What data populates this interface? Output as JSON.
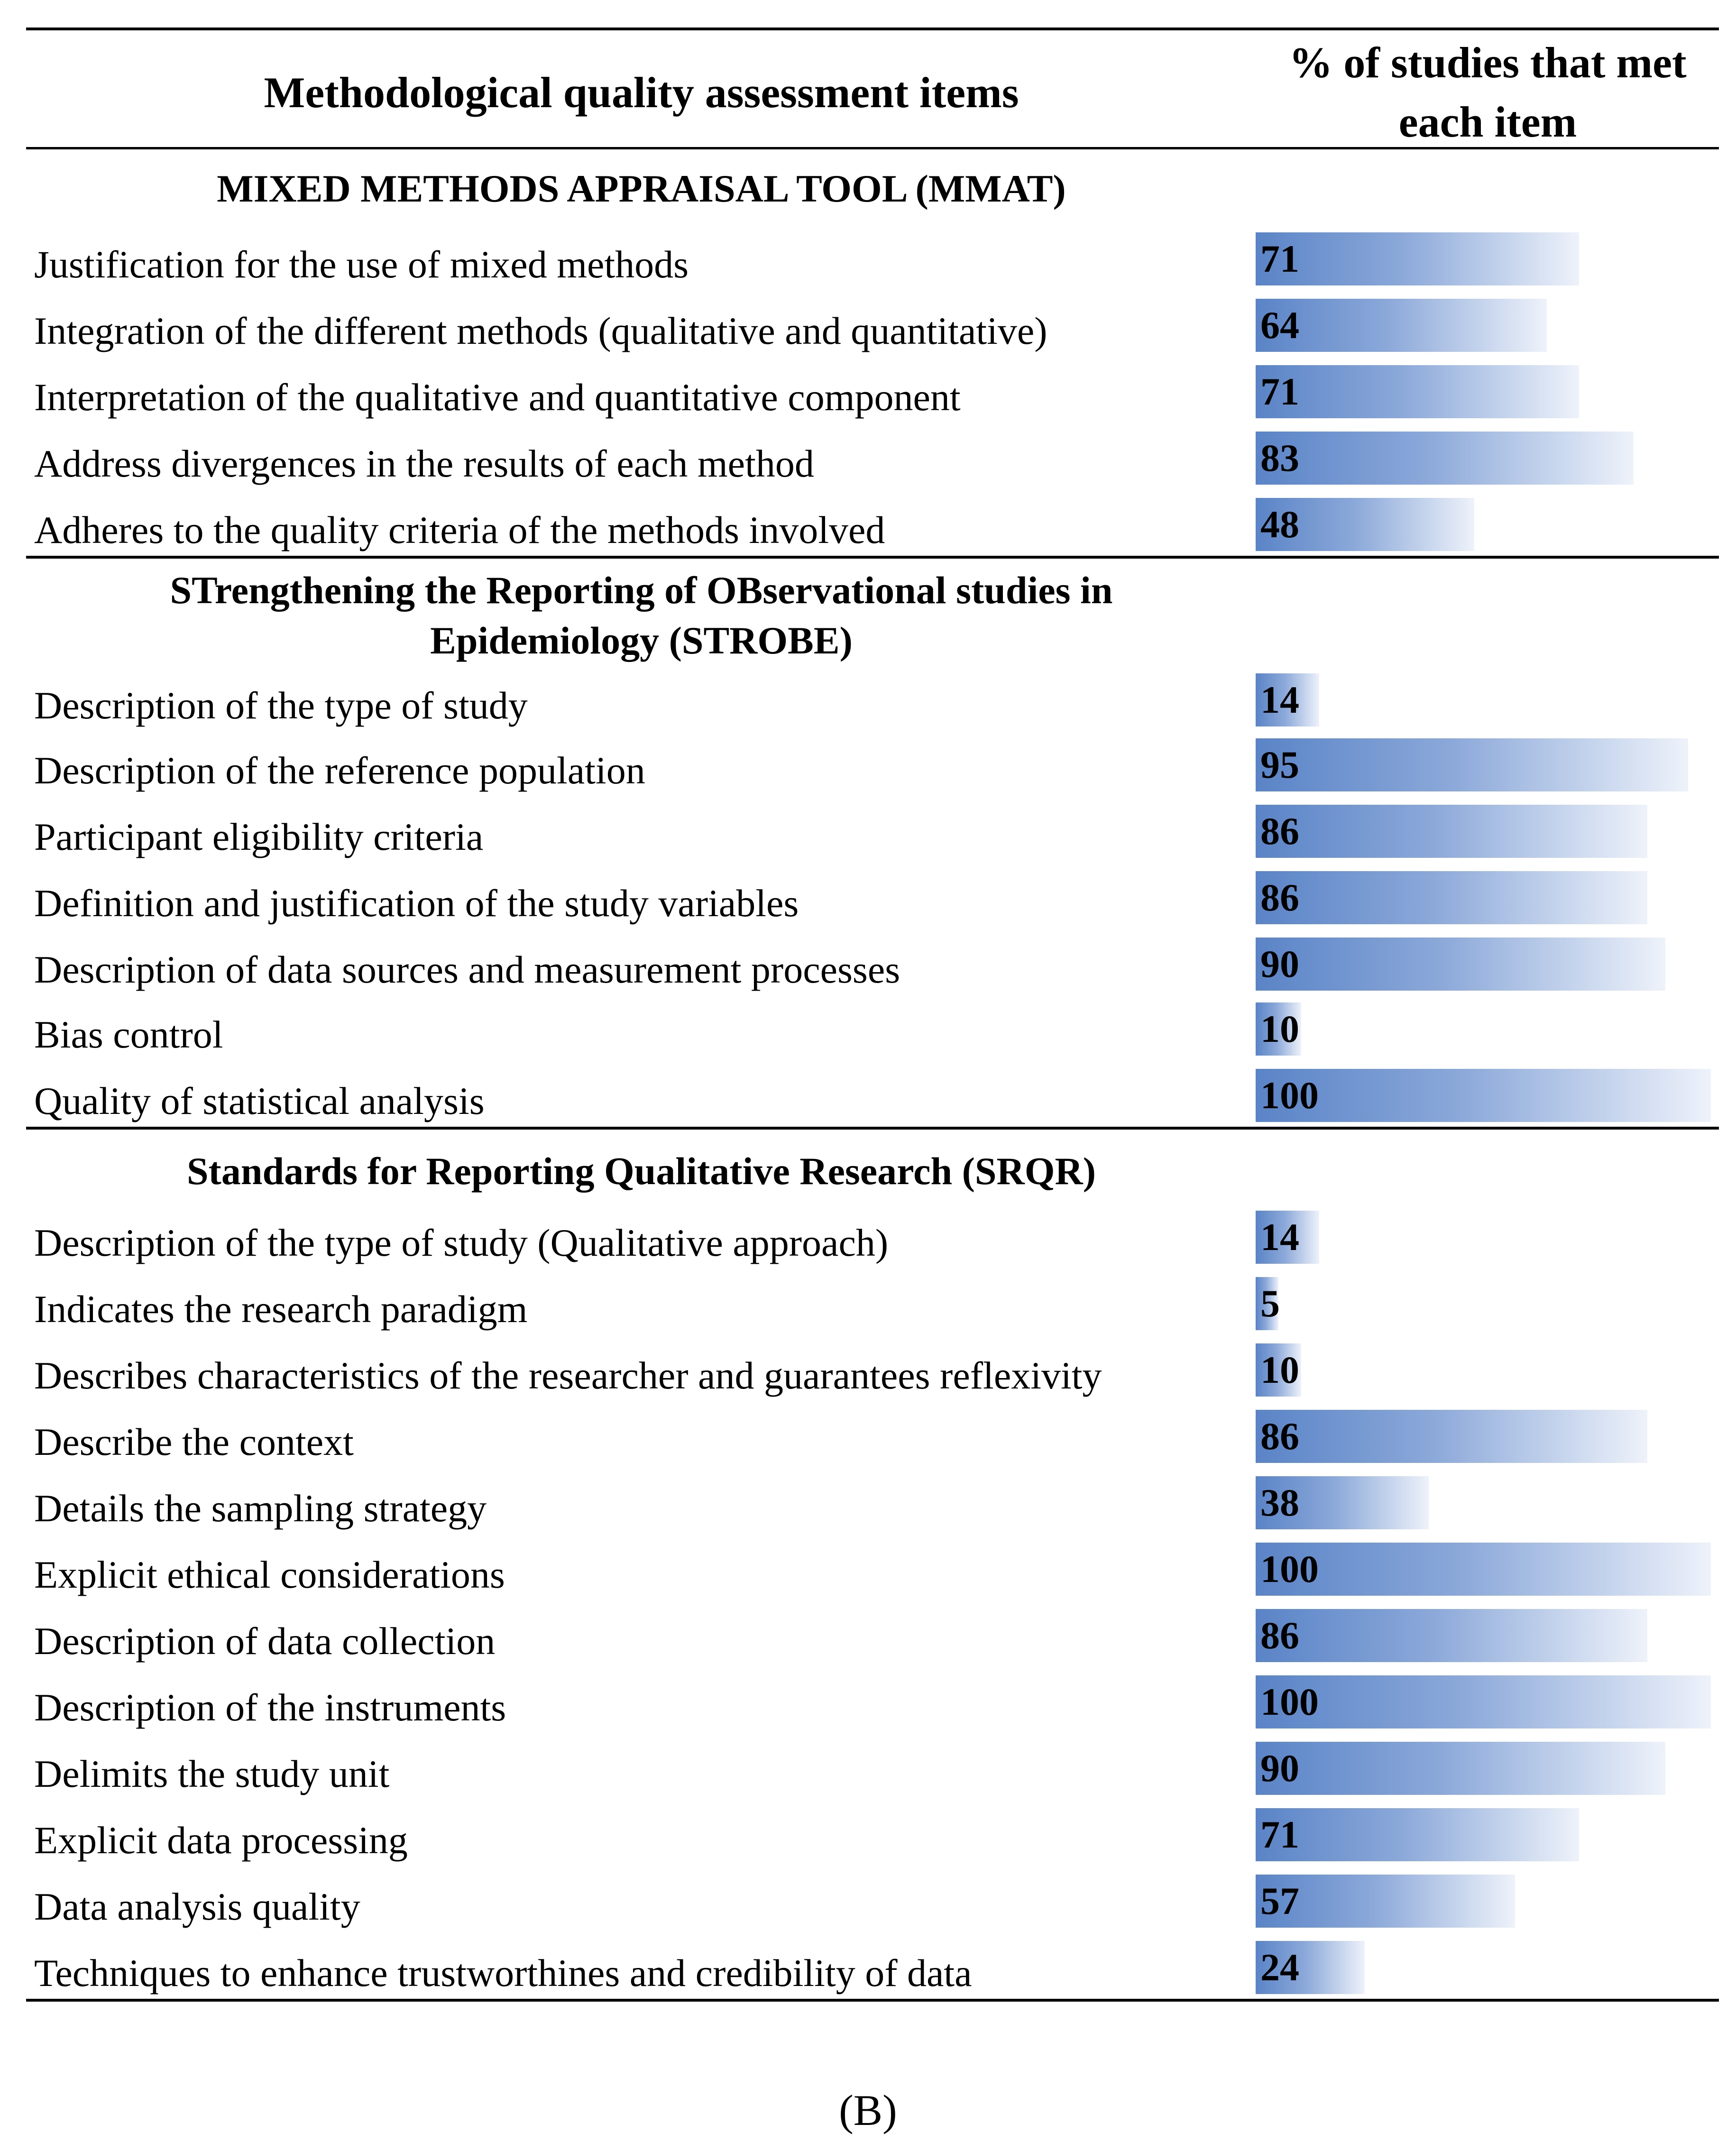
{
  "header": {
    "left": "Methodological quality assessment items",
    "right_line1": "% of studies that met",
    "right_line2": "each item"
  },
  "chart_data": {
    "type": "bar",
    "orientation": "horizontal",
    "xlabel": "% of studies that met each item",
    "xlim": [
      0,
      100
    ],
    "grid": false,
    "legend": "none",
    "sections": [
      {
        "title_lines": [
          "MIXED METHODS APPRAISAL TOOL (MMAT)"
        ],
        "items": [
          {
            "label": "Justification for the use of mixed methods",
            "value": 71
          },
          {
            "label": "Integration of the different methods (qualitative and quantitative)",
            "value": 64
          },
          {
            "label": "Interpretation of the qualitative and quantitative component",
            "value": 71
          },
          {
            "label": "Address divergences in the results of each method",
            "value": 83
          },
          {
            "label": "Adheres to the quality criteria of the methods involved",
            "value": 48
          }
        ]
      },
      {
        "title_lines": [
          "STrengthening the Reporting of OBservational studies in",
          "Epidemiology (STROBE)"
        ],
        "items": [
          {
            "label": "Description of the type of study",
            "value": 14
          },
          {
            "label": "Description of the reference population",
            "value": 95
          },
          {
            "label": "Participant eligibility criteria",
            "value": 86
          },
          {
            "label": "Definition and justification of the study variables",
            "value": 86
          },
          {
            "label": "Description of data sources and measurement processes",
            "value": 90
          },
          {
            "label": "Bias control",
            "value": 10
          },
          {
            "label": "Quality of statistical analysis",
            "value": 100
          }
        ]
      },
      {
        "title_lines": [
          "Standards for Reporting Qualitative Research (SRQR)"
        ],
        "items": [
          {
            "label": "Description of the type of study (Qualitative approach)",
            "value": 14
          },
          {
            "label": "Indicates the research paradigm",
            "value": 5
          },
          {
            "label": "Describes characteristics of the researcher and guarantees reflexivity",
            "value": 10
          },
          {
            "label": "Describe the context",
            "value": 86
          },
          {
            "label": "Details the sampling strategy",
            "value": 38
          },
          {
            "label": "Explicit ethical considerations",
            "value": 100
          },
          {
            "label": "Description of data collection",
            "value": 86
          },
          {
            "label": "Description of the instruments",
            "value": 100
          },
          {
            "label": "Delimits the study unit",
            "value": 90
          },
          {
            "label": "Explicit data processing",
            "value": 71
          },
          {
            "label": "Data analysis quality",
            "value": 57
          },
          {
            "label": "Techniques to enhance trustworthines and credibility of data",
            "value": 24
          }
        ]
      }
    ]
  },
  "caption": "(B)"
}
